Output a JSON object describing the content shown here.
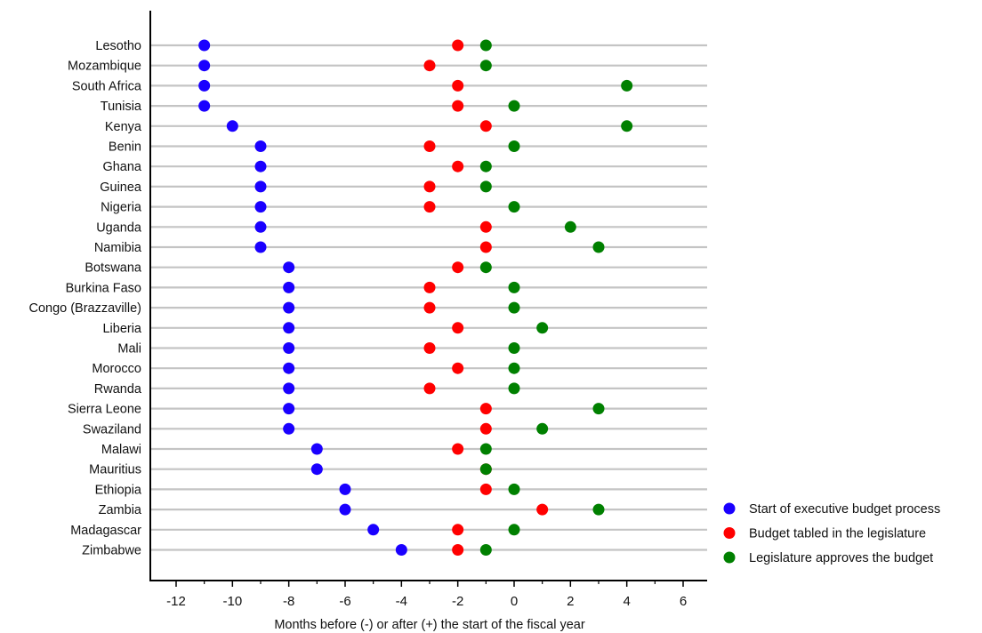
{
  "chart_data": {
    "type": "scatter",
    "title": "",
    "xlabel": "Months before (-) or after (+) the start of the fiscal year",
    "ylabel": "",
    "xlim": [
      -13,
      7
    ],
    "xticks": [
      -12,
      -10,
      -8,
      -6,
      -4,
      -2,
      0,
      2,
      4,
      6
    ],
    "grid": "horizontal row lines",
    "legend_position": "bottom-right",
    "categories": [
      "Lesotho",
      "Mozambique",
      "South Africa",
      "Tunisia",
      "Kenya",
      "Benin",
      "Ghana",
      "Guinea",
      "Nigeria",
      "Uganda",
      "Namibia",
      "Botswana",
      "Burkina Faso",
      "Congo (Brazzaville)",
      "Liberia",
      "Mali",
      "Morocco",
      "Rwanda",
      "Sierra Leone",
      "Swaziland",
      "Malawi",
      "Mauritius",
      "Ethiopia",
      "Zambia",
      "Madagascar",
      "Zimbabwe"
    ],
    "series": [
      {
        "name": "Start of executive budget process",
        "color": "#1a00ff",
        "values": [
          -11,
          -11,
          -11,
          -11,
          -10,
          -9,
          -9,
          -9,
          -9,
          -9,
          -9,
          -8,
          -8,
          -8,
          -8,
          -8,
          -8,
          -8,
          -8,
          -8,
          -7,
          -7,
          -6,
          -6,
          -5,
          -4
        ]
      },
      {
        "name": "Budget tabled in the legislature",
        "color": "#ff0000",
        "values": [
          -2,
          -3,
          -2,
          -2,
          -1,
          -3,
          -2,
          -3,
          -3,
          -1,
          -1,
          -2,
          -3,
          -3,
          -2,
          -3,
          -2,
          -3,
          -1,
          -1,
          -2,
          -1,
          -1,
          1,
          -2,
          -2
        ]
      },
      {
        "name": "Legislature approves the budget",
        "color": "#008000",
        "values": [
          -1,
          -1,
          4,
          0,
          4,
          0,
          -1,
          -1,
          0,
          2,
          3,
          -1,
          0,
          0,
          1,
          0,
          0,
          0,
          3,
          1,
          -1,
          -1,
          0,
          3,
          0,
          -1
        ]
      }
    ]
  }
}
